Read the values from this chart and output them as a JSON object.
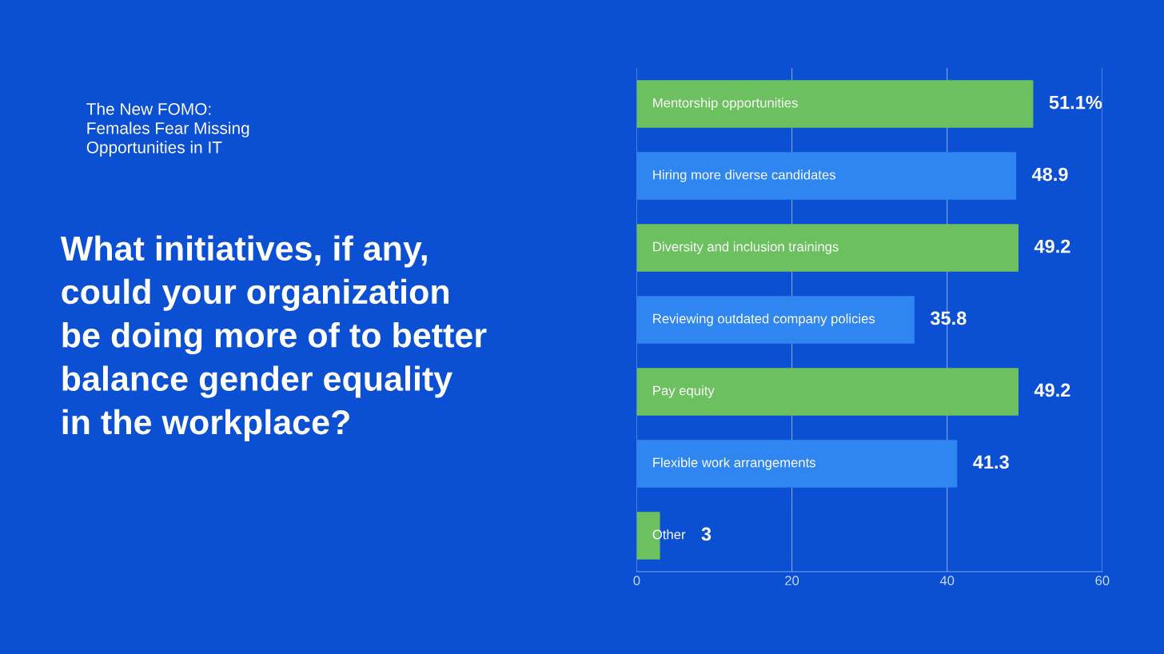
{
  "chart_data": {
    "type": "bar",
    "orientation": "horizontal",
    "subtitle": "The New FOMO:\nFemales Fear Missing\nOpportunities in IT",
    "title": "What initiatives, if any,\ncould your organization\nbe doing more of to better\nbalance gender equality\nin the workplace?",
    "categories": [
      "Mentorship opportunities",
      "Hiring more diverse candidates",
      "Diversity and inclusion trainings",
      "Reviewing outdated company policies",
      "Pay equity",
      "Flexible work arrangements",
      "Other"
    ],
    "values": [
      51.1,
      48.9,
      49.2,
      35.8,
      49.2,
      41.3,
      3
    ],
    "value_labels": [
      "51.1%",
      "48.9",
      "49.2",
      "35.8",
      "49.2",
      "41.3",
      "3"
    ],
    "colors": [
      "#6cc05f",
      "#2f86f0",
      "#6cc05f",
      "#2f86f0",
      "#6cc05f",
      "#2f86f0",
      "#6cc05f"
    ],
    "xlim": [
      0,
      60
    ],
    "xticks": [
      0,
      20,
      40,
      60
    ],
    "grid": "x",
    "tick_labels": "x"
  }
}
